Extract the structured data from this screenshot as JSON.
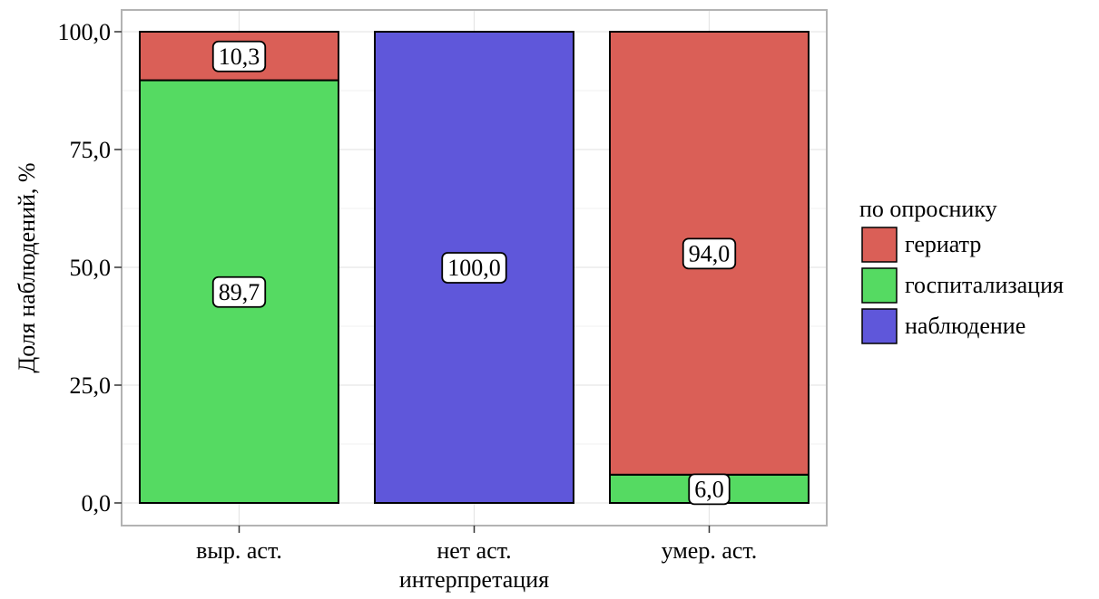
{
  "chart_data": {
    "type": "bar",
    "stacked": true,
    "categories": [
      "выр. аст.",
      "нет аст.",
      "умер. аст."
    ],
    "series": [
      {
        "name": "гериатр",
        "color": "#DA5F57",
        "values": [
          10.3,
          0,
          94.0
        ]
      },
      {
        "name": "госпитализация",
        "color": "#55DA62",
        "values": [
          89.7,
          0,
          6.0
        ]
      },
      {
        "name": "наблюдение",
        "color": "#5F57DA",
        "values": [
          0,
          100.0,
          0
        ]
      }
    ],
    "data_labels": [
      {
        "category": "выр. аст.",
        "series": "гериатр",
        "text": "10,3"
      },
      {
        "category": "выр. аст.",
        "series": "госпитализация",
        "text": "89,7"
      },
      {
        "category": "нет аст.",
        "series": "наблюдение",
        "text": "100,0"
      },
      {
        "category": "умер. аст.",
        "series": "гериатр",
        "text": "94,0"
      },
      {
        "category": "умер. аст.",
        "series": "госпитализация",
        "text": "6,0"
      }
    ],
    "title": "",
    "xlabel": "интерпретация",
    "ylabel": "Доля наблюдений, %",
    "ylim": [
      0,
      100
    ],
    "yticks": [
      0,
      25,
      50,
      75,
      100
    ],
    "ytick_labels": [
      "0,0",
      "25,0",
      "50,0",
      "75,0",
      "100,0"
    ],
    "grid": true,
    "legend": {
      "title": "по опроснику",
      "position": "right"
    }
  }
}
